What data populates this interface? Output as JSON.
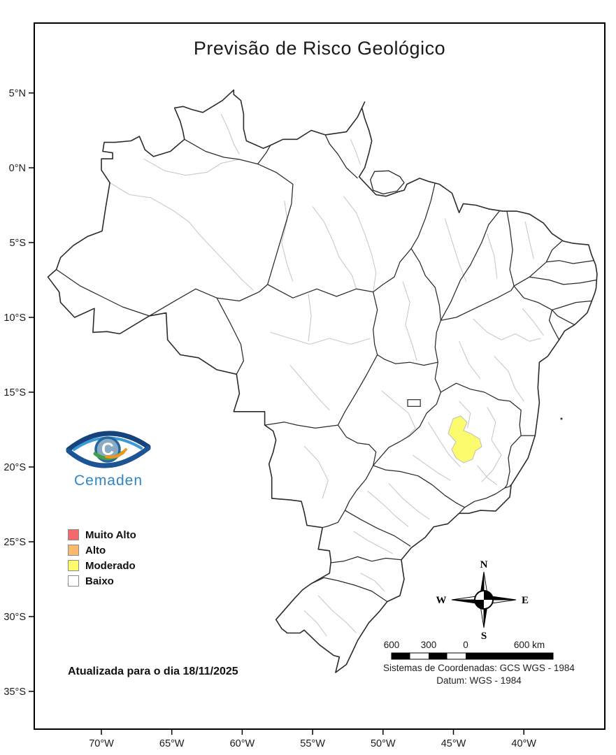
{
  "title": "Previsão de Risco Geológico",
  "map": {
    "update_note": "Atualizada para o dia 18/11/2025",
    "coordinate_system": "Sistemas de Coordenadas: GCS WGS - 1984",
    "datum": "Datum: WGS - 1984",
    "highlight_color": "#fbfb6d",
    "border_color": "#2b2b2b",
    "subregion_line_color": "#c9c9c9"
  },
  "logo": {
    "text": "Cemaden",
    "text_color": "#2e86c6"
  },
  "legend": {
    "items": [
      {
        "label": "Muito Alto",
        "color": "#f4696c"
      },
      {
        "label": "Alto",
        "color": "#f7ba6e"
      },
      {
        "label": "Moderado",
        "color": "#fbfb6d"
      },
      {
        "label": "Baixo",
        "color": "#ffffff"
      }
    ]
  },
  "compass": {
    "north": "N",
    "south": "S",
    "east": "E",
    "west": "W"
  },
  "scale_bar": {
    "labels": [
      "600",
      "300",
      "0",
      "600 km"
    ]
  },
  "axes": {
    "latitude_labels": [
      "5°N",
      "0°N",
      "5°S",
      "10°S",
      "15°S",
      "20°S",
      "25°S",
      "30°S",
      "35°S"
    ],
    "longitude_labels": [
      "70°W",
      "65°W",
      "60°W",
      "55°W",
      "50°W",
      "45°W",
      "40°W"
    ]
  }
}
